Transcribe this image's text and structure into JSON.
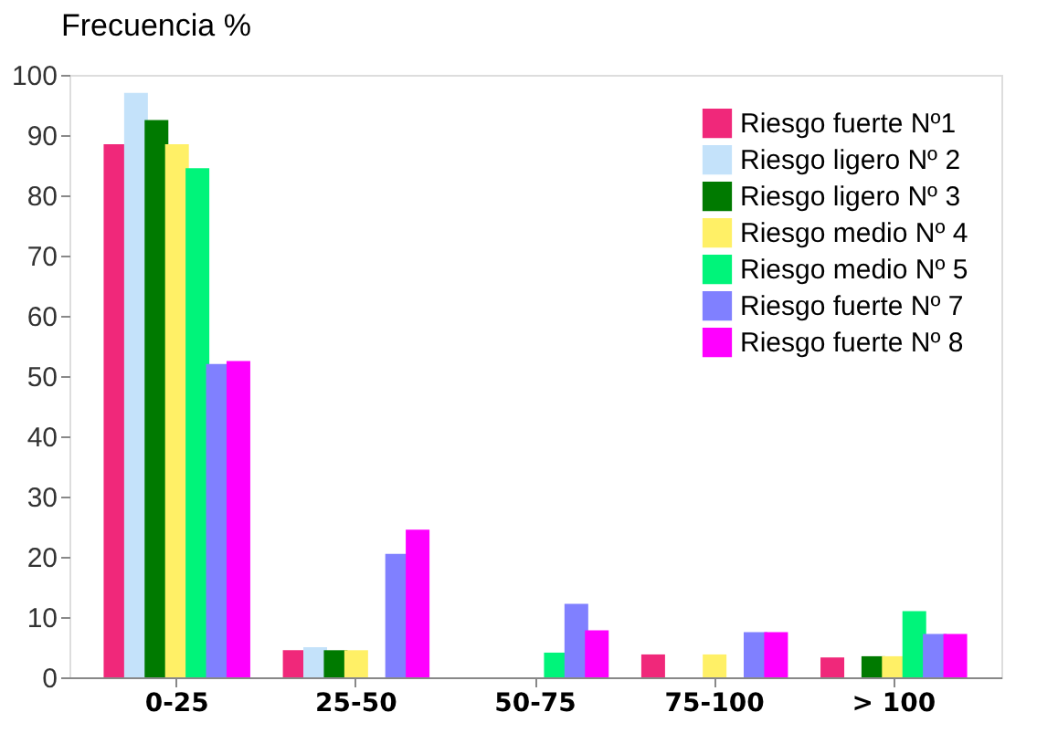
{
  "chart_data": {
    "type": "bar",
    "ylabel": "Frecuencia %",
    "categories": [
      "0-25",
      "25-50",
      "50-75",
      "75-100",
      "> 100"
    ],
    "series": [
      {
        "name": "Riesgo fuerte Nº1",
        "color": "#f0287a",
        "values": [
          88.5,
          4.5,
          null,
          3.8,
          3.3
        ]
      },
      {
        "name": "Riesgo ligero Nº 2",
        "color": "#c4e2fa",
        "values": [
          97,
          5,
          null,
          null,
          null
        ]
      },
      {
        "name": "Riesgo ligero Nº 3",
        "color": "#007a00",
        "values": [
          92.5,
          4.5,
          null,
          null,
          3.5
        ]
      },
      {
        "name": "Riesgo medio Nº 4",
        "color": "#fff066",
        "values": [
          88.5,
          4.5,
          null,
          3.8,
          3.5
        ]
      },
      {
        "name": "Riesgo medio Nº 5",
        "color": "#00f47a",
        "values": [
          84.5,
          null,
          4.1,
          null,
          11
        ]
      },
      {
        "name": "Riesgo fuerte Nº 7",
        "color": "#8080ff",
        "values": [
          52,
          20.5,
          12.2,
          7.5,
          7.2
        ]
      },
      {
        "name": "Riesgo fuerte Nº 8",
        "color": "#ff00ff",
        "values": [
          52.5,
          24.5,
          7.8,
          7.5,
          7.2
        ]
      }
    ],
    "ylim": [
      0,
      100
    ],
    "yticks": [
      0,
      10,
      20,
      30,
      40,
      50,
      60,
      70,
      80,
      90,
      100
    ],
    "grid": false,
    "legend": "top right"
  }
}
